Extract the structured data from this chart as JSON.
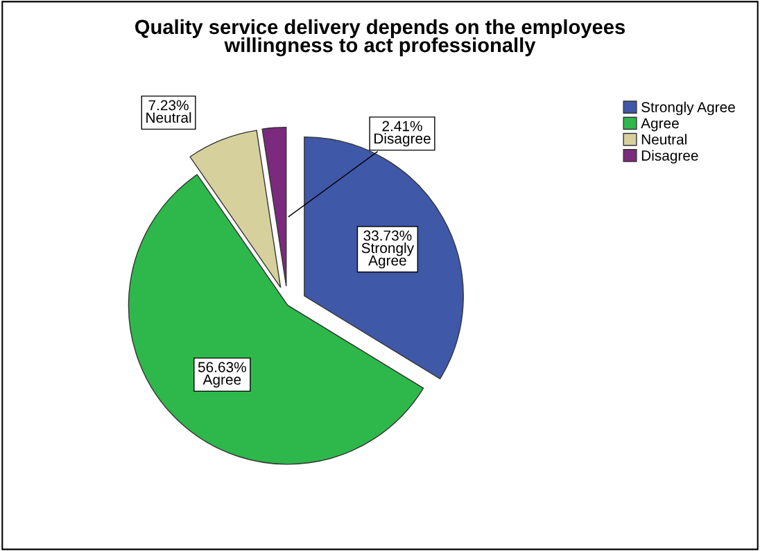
{
  "chart_data": {
    "type": "pie",
    "title": "Quality service delivery depends on the employees\nwillingness to act professionally",
    "categories": [
      "Strongly Agree",
      "Agree",
      "Neutral",
      "Disagree"
    ],
    "values": [
      33.73,
      56.63,
      7.23,
      2.41
    ],
    "colors": [
      "#3f58a8",
      "#2eb84b",
      "#d6d19c",
      "#7b2a7d"
    ],
    "value_labels": [
      "33.73%",
      "56.63%",
      "7.23%",
      "2.41%"
    ],
    "legend": "top right"
  }
}
